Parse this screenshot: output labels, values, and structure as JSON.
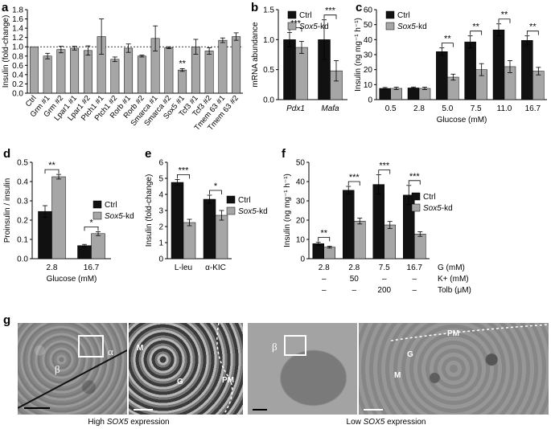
{
  "panels": {
    "a": {
      "letter": "a",
      "ylabel": "Insulin (fold-change)",
      "ylim": [
        0,
        1.8
      ],
      "ticks": [
        0,
        0.2,
        0.4,
        0.6,
        0.8,
        1.0,
        1.2,
        1.4,
        1.6,
        1.8
      ],
      "ref_line": 1.0,
      "categories": [
        "Ctrl",
        "Grm #1",
        "Grm #2",
        "Lpar1 #1",
        "Lpar1 #2",
        "Ptch1 #1",
        "Ptch1 #2",
        "Rorb #1",
        "Rorb #2",
        "Smarca #1",
        "Smarca #2",
        "Sox5 #1",
        "Tcf3 #1",
        "Tcf3 #2",
        "Tmem 63 #1",
        "Tmem 63 #2"
      ],
      "values": [
        1.0,
        0.8,
        0.94,
        0.97,
        0.92,
        1.22,
        0.73,
        0.97,
        0.8,
        1.18,
        0.98,
        0.5,
        1.0,
        0.91,
        1.14,
        1.22
      ],
      "errors": [
        0.0,
        0.06,
        0.07,
        0.04,
        0.1,
        0.38,
        0.05,
        0.09,
        0.02,
        0.27,
        0.02,
        0.03,
        0.16,
        0.07,
        0.05,
        0.08
      ],
      "sig": {
        "index": 11,
        "text": "**"
      }
    },
    "b": {
      "letter": "b",
      "ylabel": "mRNA abundance",
      "ylim": [
        0,
        1.5
      ],
      "ticks": [
        0,
        0.5,
        1.0,
        1.5
      ],
      "groups": [
        "Pdx1",
        "Mafa"
      ],
      "legend": [
        "Ctrl",
        "Sox5-kd"
      ],
      "series": [
        {
          "name": "Ctrl",
          "values": [
            1.0,
            1.0
          ],
          "errors": [
            0.12,
            0.33
          ]
        },
        {
          "name": "Sox5-kd",
          "values": [
            0.87,
            0.48
          ],
          "errors": [
            0.1,
            0.17
          ]
        }
      ],
      "sig": [
        "***",
        "***"
      ]
    },
    "c": {
      "letter": "c",
      "ylabel": "Insulin (ng mg⁻¹ h⁻¹)",
      "xlabel": "Glucose (mM)",
      "ylim": [
        0,
        60
      ],
      "ticks": [
        0,
        10,
        20,
        30,
        40,
        50,
        60
      ],
      "groups": [
        "0.5",
        "2.8",
        "5.0",
        "7.5",
        "11.0",
        "16.7"
      ],
      "legend": [
        "Ctrl",
        "Sox5-kd"
      ],
      "series": [
        {
          "name": "Ctrl",
          "values": [
            7.5,
            7.8,
            32,
            38.5,
            46.5,
            39.5
          ],
          "errors": [
            0.6,
            0.6,
            2.5,
            4,
            4,
            3
          ]
        },
        {
          "name": "Sox5-kd",
          "values": [
            7.5,
            7.5,
            15,
            20,
            22,
            19
          ],
          "errors": [
            0.8,
            0.8,
            2,
            4,
            4,
            2.5
          ]
        }
      ],
      "sig": [
        "",
        "",
        "**",
        "**",
        "**",
        "**"
      ]
    },
    "d": {
      "letter": "d",
      "ylabel": "Proinsulin / insulin",
      "xlabel": "Glucose (mM)",
      "ylim": [
        0,
        0.5
      ],
      "ticks": [
        0,
        0.1,
        0.2,
        0.3,
        0.4,
        0.5
      ],
      "groups": [
        "2.8",
        "16.7"
      ],
      "legend": [
        "Ctrl",
        "Sox5-kd"
      ],
      "series": [
        {
          "name": "Ctrl",
          "values": [
            0.245,
            0.068
          ],
          "errors": [
            0.03,
            0.006
          ]
        },
        {
          "name": "Sox5-kd",
          "values": [
            0.425,
            0.13
          ],
          "errors": [
            0.012,
            0.01
          ]
        }
      ],
      "sig": [
        "**",
        "*"
      ]
    },
    "e": {
      "letter": "e",
      "ylabel": "Insulin (fold-change)",
      "ylim": [
        0,
        6
      ],
      "ticks": [
        0,
        1,
        2,
        3,
        4,
        5,
        6
      ],
      "groups": [
        "L-leu",
        "α-KIC"
      ],
      "legend": [
        "Ctrl",
        "Sox5-kd"
      ],
      "series": [
        {
          "name": "Ctrl",
          "values": [
            4.75,
            3.7
          ],
          "errors": [
            0.18,
            0.25
          ]
        },
        {
          "name": "Sox5-kd",
          "values": [
            2.25,
            2.7
          ],
          "errors": [
            0.2,
            0.3
          ]
        }
      ],
      "sig": [
        "***",
        "*"
      ]
    },
    "f": {
      "letter": "f",
      "ylabel": "Insulin (ng mg⁻¹ h⁻¹)",
      "ylim": [
        0,
        50
      ],
      "ticks": [
        0,
        10,
        20,
        30,
        40,
        50
      ],
      "groups": [
        "2.8",
        "2.8",
        "7.5",
        "16.7"
      ],
      "legend": [
        "Ctrl",
        "Sox5-kd"
      ],
      "series": [
        {
          "name": "Ctrl",
          "values": [
            7.8,
            35.5,
            38.5,
            33
          ],
          "errors": [
            0.8,
            2,
            5,
            5
          ]
        },
        {
          "name": "Sox5-kd",
          "values": [
            6,
            19.5,
            17.5,
            12.8
          ],
          "errors": [
            0.5,
            1.5,
            1.8,
            1.2
          ]
        }
      ],
      "sig": [
        "**",
        "***",
        "***",
        "***"
      ],
      "rows": [
        {
          "label": "G (mM)",
          "cells": [
            "2.8",
            "2.8",
            "7.5",
            "16.7"
          ]
        },
        {
          "label": "K+ (mM)",
          "cells": [
            "–",
            "50",
            "–",
            "–"
          ]
        },
        {
          "label": "Tolb (μM)",
          "cells": [
            "–",
            "–",
            "200",
            "–"
          ]
        }
      ]
    }
  },
  "colors": {
    "ctrl": "#111111",
    "kd": "#a6a6a6",
    "bar_a": "#a6a6a6"
  },
  "g": {
    "letter": "g",
    "caption_left_pre": "High ",
    "caption_left_gene": "SOX5",
    "caption_left_post": " expression",
    "caption_right_pre": "Low ",
    "caption_right_gene": "SOX5",
    "caption_right_post": " expression",
    "labels": {
      "alpha": "α",
      "beta": "β",
      "beta2": "β",
      "m1": "M",
      "g1": "G",
      "pm1": "PM",
      "pm2": "PM",
      "g2": "G",
      "m2": "M"
    }
  }
}
